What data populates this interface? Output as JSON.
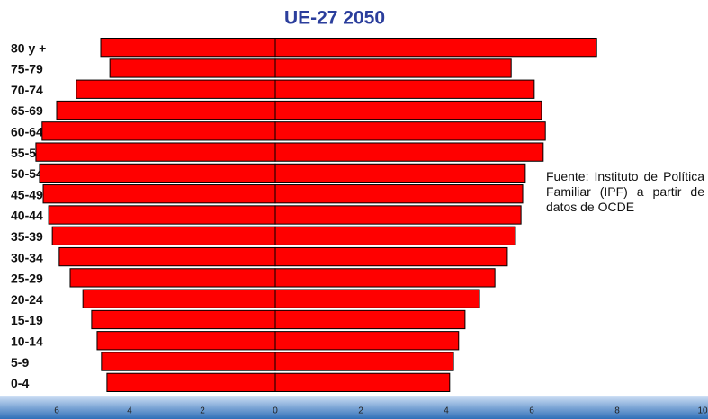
{
  "chart_data": {
    "type": "pyramid",
    "title": "UE-27  2050",
    "categories": [
      "80 y +",
      "75-79",
      "70-74",
      "65-69",
      "60-64",
      "55-59",
      "50-54",
      "45-49",
      "40-44",
      "35-39",
      "30-34",
      "25-29",
      "20-24",
      "15-19",
      "10-14",
      "5-9",
      "0-4"
    ],
    "series": [
      {
        "color": "#ff0000",
        "side": "left",
        "xlim": [
          0,
          6
        ],
        "xticks": [
          0,
          2,
          4,
          6
        ],
        "values": [
          4.79,
          4.54,
          5.46,
          6.0,
          6.4,
          6.57,
          6.47,
          6.37,
          6.22,
          6.12,
          5.93,
          5.63,
          5.28,
          5.04,
          4.89,
          4.77,
          4.62
        ]
      },
      {
        "color": "#ff0000",
        "side": "right",
        "xlim": [
          0,
          10
        ],
        "xticks": [
          2,
          4,
          6,
          8,
          10
        ],
        "values": [
          7.52,
          5.52,
          6.06,
          6.23,
          6.32,
          6.27,
          5.85,
          5.79,
          5.75,
          5.62,
          5.43,
          5.14,
          4.78,
          4.44,
          4.29,
          4.17,
          4.08
        ]
      }
    ],
    "annotation": "Fuente: Instituto de Política Familiar (IPF) a partir de datos de OCDE"
  }
}
